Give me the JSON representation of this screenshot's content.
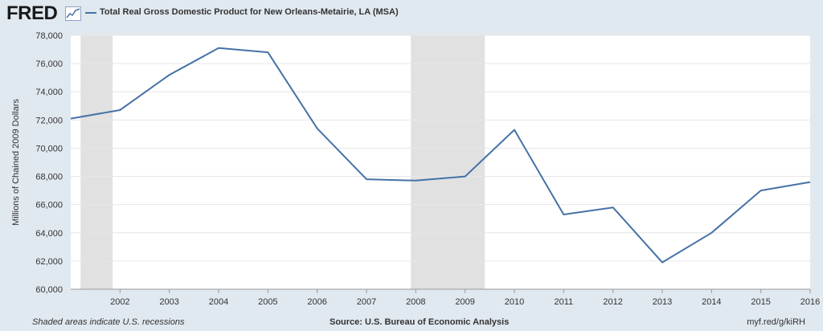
{
  "header": {
    "logo_text": "FRED",
    "legend_label": "Total Real Gross Domestic Product for New Orleans-Metairie, LA (MSA)"
  },
  "footer": {
    "recession_note": "Shaded areas indicate U.S. recessions",
    "source": "Source: U.S. Bureau of Economic Analysis",
    "short_url": "myf.red/g/kiRH"
  },
  "chart_data": {
    "type": "line",
    "title": "",
    "ylabel": "Millions of Chained 2009 Dollars",
    "xlabel": "",
    "x": [
      2001,
      2002,
      2003,
      2004,
      2005,
      2006,
      2007,
      2008,
      2009,
      2010,
      2011,
      2012,
      2013,
      2014,
      2015,
      2016
    ],
    "series": [
      {
        "name": "Total Real Gross Domestic Product for New Orleans-Metairie, LA (MSA)",
        "color": "#4572a7",
        "values": [
          72100,
          72700,
          75200,
          77100,
          76800,
          71400,
          67800,
          67700,
          68000,
          71300,
          65300,
          65800,
          61900,
          64000,
          67000,
          67600
        ]
      }
    ],
    "xticks": [
      "2002",
      "2003",
      "2004",
      "2005",
      "2006",
      "2007",
      "2008",
      "2009",
      "2010",
      "2011",
      "2012",
      "2013",
      "2014",
      "2015",
      "2016"
    ],
    "yticks": [
      "60,000",
      "62,000",
      "64,000",
      "66,000",
      "68,000",
      "70,000",
      "72,000",
      "74,000",
      "76,000",
      "78,000"
    ],
    "ylim": [
      60000,
      78000
    ],
    "xlim": [
      2001,
      2016
    ],
    "recessions": [
      [
        2001.2,
        2001.85
      ],
      [
        2007.9,
        2009.4
      ]
    ],
    "grid": true,
    "colors": {
      "recession": "#e1e1e1",
      "grid": "#e6e6e6",
      "plot_bg": "#ffffff",
      "page_bg": "#e1e9f0"
    }
  }
}
